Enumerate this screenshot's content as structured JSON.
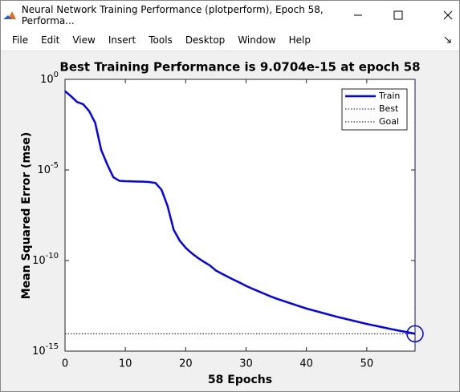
{
  "window": {
    "title": "Neural Network Training Performance (plotperform), Epoch 58, Performa...",
    "menu": [
      "File",
      "Edit",
      "View",
      "Insert",
      "Tools",
      "Desktop",
      "Window",
      "Help"
    ]
  },
  "chart_data": {
    "type": "line",
    "title": "Best Training Performance is 9.0704e-15 at epoch 58",
    "xlabel": "58 Epochs",
    "ylabel": "Mean Squared Error  (mse)",
    "log_y": true,
    "legend": "northeast",
    "xlim": [
      0,
      58
    ],
    "xticks": [
      0,
      10,
      20,
      30,
      40,
      50
    ],
    "ylim": [
      1e-15,
      1
    ],
    "yticks": [
      {
        "value": 1e-15,
        "label": "10^-15"
      },
      {
        "value": 1e-10,
        "label": "10^-10"
      },
      {
        "value": 1e-05,
        "label": "10^-5"
      },
      {
        "value": 1,
        "label": "10^0"
      }
    ],
    "x": [
      0,
      1,
      2,
      3,
      4,
      5,
      6,
      7,
      8,
      9,
      10,
      11,
      12,
      13,
      14,
      15,
      16,
      17,
      18,
      19,
      20,
      21,
      22,
      23,
      24,
      25,
      26,
      27,
      28,
      29,
      30,
      31,
      32,
      33,
      34,
      35,
      36,
      37,
      38,
      39,
      40,
      41,
      42,
      43,
      44,
      45,
      46,
      47,
      48,
      49,
      50,
      51,
      52,
      53,
      54,
      55,
      56,
      57,
      58
    ],
    "series": [
      {
        "name": "Train",
        "color": "#0000ff",
        "style": "solid",
        "values": [
          0.224,
          0.117,
          0.0562,
          0.0427,
          0.0178,
          0.00398,
          0.000126,
          2e-05,
          3.98e-06,
          2.51e-06,
          2.4e-06,
          2.34e-06,
          2.29e-06,
          2.24e-06,
          2.14e-06,
          1.91e-06,
          7.94e-07,
          1e-07,
          5.01e-09,
          1.26e-09,
          5.01e-10,
          2.51e-10,
          1.41e-10,
          8.51e-11,
          5.37e-11,
          2.82e-11,
          1.86e-11,
          1.26e-11,
          8.51e-12,
          5.89e-12,
          3.98e-12,
          2.82e-12,
          2.04e-12,
          1.48e-12,
          1.07e-12,
          7.94e-13,
          6.17e-13,
          4.79e-13,
          3.72e-13,
          2.88e-13,
          2.24e-13,
          1.82e-13,
          1.48e-13,
          1.2e-13,
          9.77e-14,
          7.94e-14,
          6.61e-14,
          5.5e-14,
          4.57e-14,
          3.8e-14,
          3.16e-14,
          2.69e-14,
          2.29e-14,
          1.95e-14,
          1.66e-14,
          1.41e-14,
          1.23e-14,
          1.07e-14,
          9.0704e-15
        ]
      },
      {
        "name": "Best",
        "color": "#000080",
        "style": "dotted",
        "epoch": 58,
        "value": 9.0704e-15
      },
      {
        "name": "Goal",
        "color": "#000000",
        "style": "dotted"
      }
    ]
  }
}
